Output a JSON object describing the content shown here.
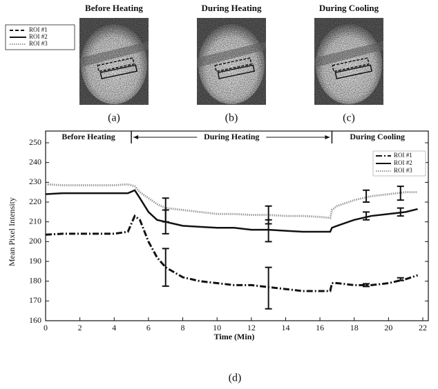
{
  "panels": [
    {
      "title": "Before Heating",
      "label": "(a)"
    },
    {
      "title": "During Heating",
      "label": "(b)"
    },
    {
      "title": "During Cooling",
      "label": "(c)"
    }
  ],
  "panel_legend": [
    "ROI #1",
    "ROI #2",
    "ROI #3"
  ],
  "chart_label": "(d)",
  "chart_data": {
    "type": "line",
    "xlabel": "Time (Min)",
    "ylabel": "Mean Pixel Intensity",
    "xlim": [
      0,
      22
    ],
    "xticks": [
      0,
      2,
      4,
      6,
      8,
      10,
      12,
      14,
      16,
      18,
      20,
      22
    ],
    "ylim": [
      160,
      250
    ],
    "yticks": [
      160,
      170,
      180,
      190,
      200,
      210,
      220,
      230,
      240,
      250
    ],
    "legend": "upper right",
    "phases": [
      {
        "label": "Before Heating",
        "start": 0,
        "end": 5
      },
      {
        "label": "During Heating",
        "start": 5,
        "end": 16.7
      },
      {
        "label": "During Cooling",
        "start": 16.7,
        "end": 22
      }
    ],
    "x": [
      0,
      1,
      2,
      3,
      4,
      4.8,
      5.2,
      5.5,
      6,
      6.5,
      7,
      8,
      9,
      10,
      11,
      12,
      13,
      14,
      15,
      16,
      16.6,
      16.7,
      17,
      18,
      19,
      20,
      21,
      21.7
    ],
    "series": [
      {
        "name": "ROI #1",
        "color": "#111111",
        "style": "dashdot",
        "values": [
          203.5,
          204,
          204,
          204,
          204,
          205,
          213,
          211,
          200,
          192,
          187,
          182,
          180,
          179,
          178,
          178,
          177,
          176,
          175,
          175,
          175,
          179,
          179,
          178,
          178,
          179,
          181,
          183
        ],
        "error_bars": [
          {
            "x": 7,
            "y": 187,
            "err": 9.5
          },
          {
            "x": 13,
            "y": 176.5,
            "err": 10.5
          },
          {
            "x": 18.7,
            "y": 178,
            "err": 0.7
          },
          {
            "x": 20.7,
            "y": 181,
            "err": 0.7
          }
        ]
      },
      {
        "name": "ROI #2",
        "color": "#111111",
        "style": "solid",
        "values": [
          224,
          224.5,
          224.5,
          224.5,
          224.5,
          224.5,
          226,
          222,
          215,
          211,
          210,
          208,
          207.5,
          207,
          207,
          206,
          206,
          205.5,
          205,
          205,
          205,
          207,
          208,
          211,
          213,
          214,
          215,
          216.5
        ],
        "error_bars": [
          {
            "x": 7,
            "y": 210,
            "err": 6
          },
          {
            "x": 13,
            "y": 205.5,
            "err": 5.5
          },
          {
            "x": 18.7,
            "y": 213,
            "err": 2
          },
          {
            "x": 20.7,
            "y": 215,
            "err": 2
          }
        ]
      },
      {
        "name": "ROI #3",
        "color": "#9a9a9a",
        "style": "dotted",
        "values": [
          229,
          228.5,
          228.5,
          228.5,
          228.5,
          229,
          228,
          225,
          222,
          219,
          217,
          216,
          215,
          214,
          214,
          213.5,
          213.5,
          213,
          213,
          212.5,
          212,
          216,
          218,
          221,
          223,
          224,
          225,
          225
        ],
        "error_bars": [
          {
            "x": 7,
            "y": 216,
            "err": 6
          },
          {
            "x": 13,
            "y": 213.5,
            "err": 4.5
          },
          {
            "x": 18.7,
            "y": 223,
            "err": 3
          },
          {
            "x": 20.7,
            "y": 224.5,
            "err": 3.5
          }
        ]
      }
    ]
  }
}
